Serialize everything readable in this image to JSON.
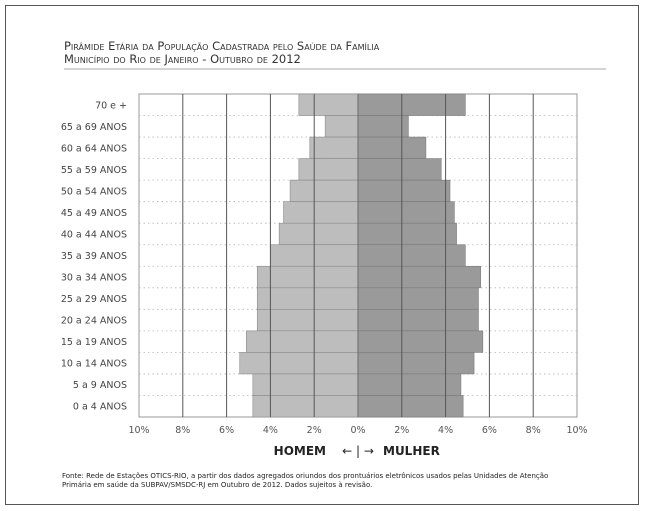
{
  "chart_data": {
    "type": "bar",
    "subtype": "population-pyramid",
    "title": [
      "Pirâmide Etária da População Cadastrada pelo Saúde da Família",
      "Município do Rio de Janeiro - Outubro de 2012"
    ],
    "categories": [
      "70 e +",
      "65 a 69 ANOS",
      "60 a 64 ANOS",
      "55 a 59 ANOS",
      "50 a 54 ANOS",
      "45 a 49 ANOS",
      "40 a 44 ANOS",
      "35 a 39 ANOS",
      "30 a 34 ANOS",
      "25 a 29 ANOS",
      "20 a 24 ANOS",
      "15 a 19 ANOS",
      "10 a 14 ANOS",
      "5 a 9 ANOS",
      "0 a 4 ANOS"
    ],
    "series": [
      {
        "name": "HOMEM",
        "values": [
          2.7,
          1.5,
          2.2,
          2.7,
          3.1,
          3.4,
          3.6,
          4.0,
          4.6,
          4.6,
          4.6,
          5.1,
          5.4,
          4.8,
          4.8
        ],
        "color": "#bdbdbd"
      },
      {
        "name": "MULHER",
        "values": [
          4.9,
          2.3,
          3.1,
          3.8,
          4.2,
          4.4,
          4.5,
          4.9,
          5.6,
          5.5,
          5.5,
          5.7,
          5.3,
          4.7,
          4.8
        ],
        "color": "#9a9a9a"
      }
    ],
    "xlim": [
      -10,
      10
    ],
    "xticks": [
      -10,
      -8,
      -6,
      -4,
      -2,
      0,
      2,
      4,
      6,
      8,
      10
    ],
    "xtick_labels": [
      "10%",
      "8%",
      "6%",
      "4%",
      "2%",
      "0%",
      "2%",
      "4%",
      "6%",
      "8%",
      "10%"
    ],
    "xlabel_left": "HOMEM",
    "xlabel_arrow": "←  |  →",
    "xlabel_right": "MULHER",
    "source": [
      "Fonte: Rede de Estações OTICS-RIO, a partir dos dados agregados oriundos dos prontuários eletrônicos usados pelas Unidades de Atenção",
      "Primária em saúde da SUBPAV/SMSDC-RJ em Outubro de 2012. Dados sujeitos à revisão."
    ]
  }
}
